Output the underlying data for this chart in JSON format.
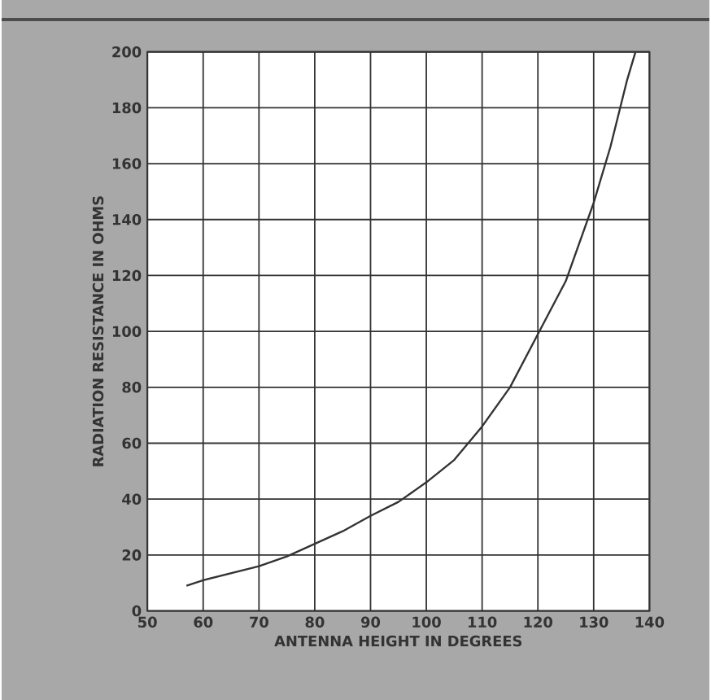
{
  "chart_data": {
    "type": "line",
    "xlabel": "ANTENNA HEIGHT IN DEGREES",
    "ylabel": "RADIATION RESISTANCE IN OHMS",
    "xlim": [
      50,
      140
    ],
    "xticks": [
      50,
      60,
      70,
      80,
      90,
      100,
      110,
      120,
      130,
      140
    ],
    "ylim": [
      0,
      200
    ],
    "yticks": [
      0,
      20,
      40,
      60,
      80,
      100,
      120,
      140,
      160,
      180,
      200
    ],
    "grid": true,
    "marker": "none",
    "line_style": "solid",
    "series": [
      {
        "color": "#333333",
        "x": [
          57,
          60,
          65,
          70,
          75,
          80,
          85,
          90,
          95,
          100,
          105,
          110,
          115,
          120,
          125,
          130,
          133,
          136,
          137.5
        ],
        "values": [
          9,
          11,
          13.5,
          16,
          19.5,
          24,
          28.5,
          34,
          39,
          46,
          54,
          66,
          80,
          99,
          118,
          146,
          166,
          190,
          200
        ]
      }
    ]
  }
}
